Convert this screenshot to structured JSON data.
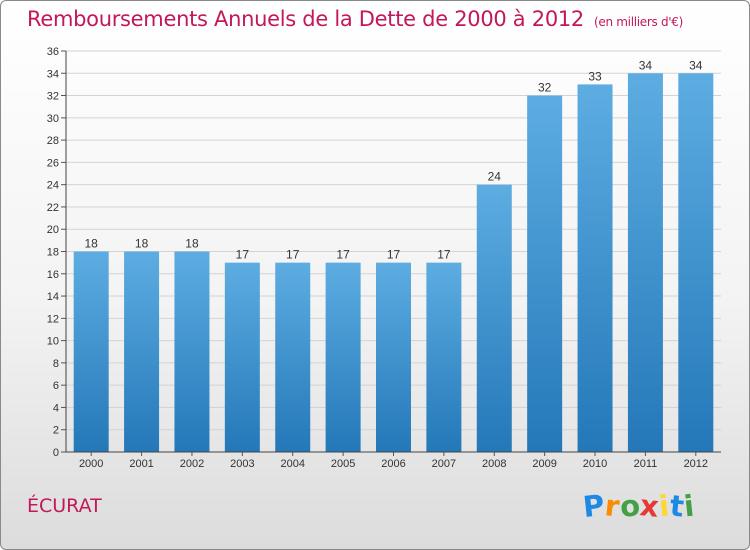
{
  "header": {
    "title": "Remboursements Annuels de la Dette de 2000 à 2012",
    "unit": "(en milliers d'€)"
  },
  "footer": {
    "city": "ÉCURAT",
    "logo_letters": [
      {
        "ch": "P",
        "color": "#1e88e5"
      },
      {
        "ch": "r",
        "color": "#fb8c00"
      },
      {
        "ch": "o",
        "color": "#43a047"
      },
      {
        "ch": "x",
        "color": "#e53935"
      },
      {
        "ch": "i",
        "color": "#fdd835"
      },
      {
        "ch": "t",
        "color": "#1e88e5"
      },
      {
        "ch": "i",
        "color": "#43a047"
      }
    ]
  },
  "chart_data": {
    "type": "bar",
    "title": "Remboursements Annuels de la Dette de 2000 à 2012",
    "categories": [
      "2000",
      "2001",
      "2002",
      "2003",
      "2004",
      "2005",
      "2006",
      "2007",
      "2008",
      "2009",
      "2010",
      "2011",
      "2012"
    ],
    "values": [
      18,
      18,
      18,
      17,
      17,
      17,
      17,
      17,
      24,
      32,
      33,
      34,
      34
    ],
    "ylim": [
      0,
      36
    ],
    "yticks": [
      0,
      2,
      4,
      6,
      8,
      10,
      12,
      14,
      16,
      18,
      20,
      22,
      24,
      26,
      28,
      30,
      32,
      34,
      36
    ],
    "grid": true,
    "bar_color_top": "#5dade2",
    "bar_color_bottom": "#2478b8"
  }
}
